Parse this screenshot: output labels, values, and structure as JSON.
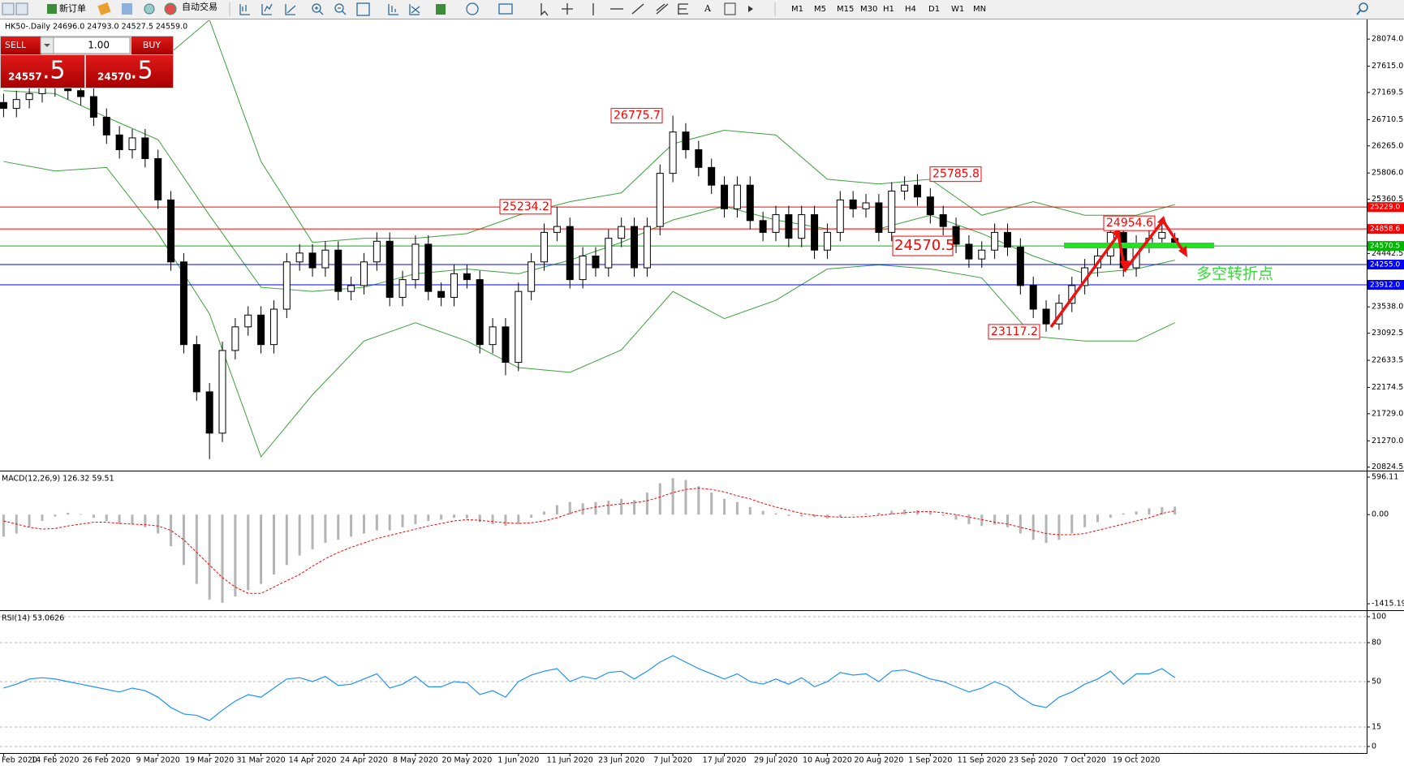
{
  "toolbar": {
    "new_order": "新订单",
    "auto_trading": "自动交易",
    "timeframes": [
      "M1",
      "M5",
      "M15",
      "M30",
      "H1",
      "H4",
      "D1",
      "W1",
      "MN"
    ]
  },
  "trade_panel": {
    "sell": "SELL",
    "lot": "1.00",
    "buy": "BUY",
    "sell_main": "24557",
    "sell_frac": ".5",
    "buy_main": "24570",
    "buy_frac": ".5"
  },
  "chart_data": [
    {
      "type": "candlestick",
      "header": "HK50-.Daily  24696.0 24793.0 24527.5 24559.0",
      "categories": [
        "Feb 2020",
        null,
        null,
        null,
        "14 Feb 2020",
        null,
        null,
        null,
        "26 Feb 2020",
        null,
        null,
        null,
        "9 Mar 2020",
        null,
        null,
        null,
        "19 Mar 2020",
        null,
        null,
        null,
        "31 Mar 2020",
        null,
        null,
        null,
        "14 Apr 2020",
        null,
        null,
        null,
        "24 Apr 2020",
        null,
        null,
        null,
        "8 May 2020",
        null,
        null,
        null,
        "20 May 2020",
        null,
        null,
        null,
        "1 Jun 2020",
        null,
        null,
        null,
        "11 Jun 2020",
        null,
        null,
        null,
        "23 Jun 2020",
        null,
        null,
        null,
        "7 Jul 2020",
        null,
        null,
        null,
        "17 Jul 2020",
        null,
        null,
        null,
        "29 Jul 2020",
        null,
        null,
        null,
        "10 Aug 2020",
        null,
        null,
        null,
        "20 Aug 2020",
        null,
        null,
        null,
        "1 Sep 2020",
        null,
        null,
        null,
        "11 Sep 2020",
        null,
        null,
        null,
        "23 Sep 2020",
        null,
        null,
        null,
        "7 Oct 2020",
        null,
        null,
        null,
        "19 Oct 2020",
        null,
        null,
        null
      ],
      "open": [
        27000,
        26900,
        27050,
        27150,
        27250,
        27300,
        27200,
        27100,
        26750,
        26450,
        26200,
        26400,
        26050,
        25350,
        24300,
        22900,
        22100,
        21400,
        22800,
        23200,
        23400,
        22900,
        23500,
        24300,
        24450,
        24200,
        24500,
        23800,
        23900,
        24300,
        24650,
        23700,
        24000,
        24600,
        23800,
        23700,
        24100,
        24000,
        22900,
        23200,
        22600,
        23800,
        24300,
        24800,
        24900,
        24000,
        24400,
        24200,
        24700,
        24900,
        24200,
        24900,
        25800,
        26500,
        26200,
        25900,
        25600,
        25200,
        25600,
        25000,
        24800,
        25100,
        24700,
        25100,
        24500,
        24800,
        25350,
        25200,
        25300,
        24800,
        25500,
        25600,
        25400,
        25100,
        24900,
        24600,
        24350,
        24500,
        24800,
        24550,
        23900,
        23500,
        23250,
        23600,
        23900,
        24200,
        24400,
        24800,
        24200,
        24600,
        24700,
        24696
      ],
      "high": [
        27150,
        27200,
        27300,
        27400,
        27450,
        27450,
        27350,
        27250,
        26900,
        26600,
        26550,
        26550,
        26200,
        25500,
        24450,
        23050,
        22250,
        22950,
        23350,
        23550,
        23550,
        23650,
        24450,
        24600,
        24600,
        24650,
        24650,
        24050,
        24450,
        24800,
        24800,
        24150,
        24750,
        24750,
        23950,
        24250,
        24250,
        24150,
        23350,
        23350,
        23950,
        24450,
        24950,
        25234.2,
        25050,
        24550,
        24550,
        24850,
        25050,
        25050,
        25050,
        25950,
        26775.7,
        26650,
        26350,
        26050,
        25750,
        25750,
        25750,
        25150,
        25250,
        25250,
        25250,
        25250,
        24950,
        25500,
        25500,
        25450,
        25450,
        25650,
        25750,
        25785.8,
        25550,
        25250,
        25050,
        24750,
        24650,
        24950,
        24950,
        24700,
        24050,
        23650,
        23750,
        24050,
        24350,
        24550,
        24954.6,
        24950,
        24750,
        24850,
        24950,
        24793
      ],
      "low": [
        26750,
        26750,
        26900,
        27000,
        27100,
        27050,
        26950,
        26600,
        26300,
        26050,
        26050,
        25900,
        25200,
        24150,
        22750,
        21950,
        20960,
        21250,
        22650,
        23050,
        22750,
        22750,
        23350,
        24150,
        24050,
        24050,
        23650,
        23650,
        23750,
        24150,
        23550,
        23550,
        23850,
        23650,
        23550,
        23550,
        23850,
        22750,
        22750,
        22380,
        22450,
        23650,
        24150,
        24650,
        23850,
        23850,
        24050,
        24050,
        24550,
        24050,
        24050,
        24750,
        25650,
        26050,
        25750,
        25450,
        25050,
        25050,
        24850,
        24650,
        24650,
        24550,
        24550,
        24350,
        24350,
        24650,
        25050,
        25050,
        24650,
        24650,
        25350,
        25250,
        24950,
        24750,
        24450,
        24200,
        24200,
        24350,
        24400,
        23750,
        23350,
        23117.2,
        23150,
        23450,
        23750,
        24050,
        24250,
        24050,
        24050,
        24450,
        24550,
        24527.5
      ],
      "close": [
        26900,
        27050,
        27150,
        27250,
        27300,
        27200,
        27100,
        26750,
        26450,
        26200,
        26400,
        26050,
        25350,
        24300,
        22900,
        22100,
        21400,
        22800,
        23200,
        23400,
        22900,
        23500,
        24300,
        24450,
        24200,
        24500,
        23800,
        23900,
        24300,
        24650,
        23700,
        24000,
        24600,
        23800,
        23700,
        24100,
        24000,
        22900,
        23200,
        22600,
        23800,
        24300,
        24800,
        24900,
        24000,
        24400,
        24200,
        24700,
        24900,
        24200,
        24900,
        25800,
        26500,
        26200,
        25900,
        25600,
        25200,
        25600,
        25000,
        24800,
        25100,
        24700,
        25100,
        24500,
        24800,
        25350,
        25200,
        25300,
        24800,
        25500,
        25600,
        25400,
        25100,
        24900,
        24600,
        24350,
        24500,
        24800,
        24550,
        23900,
        23500,
        23250,
        23600,
        23900,
        24200,
        24400,
        24800,
        24200,
        24600,
        24700,
        24800,
        24559
      ],
      "band_x": [
        0,
        4,
        8,
        12,
        16,
        20,
        24,
        28,
        32,
        36,
        40,
        44,
        48,
        52,
        56,
        60,
        64,
        68,
        72,
        76,
        80,
        84,
        88,
        91
      ],
      "band_color": "#3ca03c",
      "bands": [
        {
          "values": [
            27900,
            27950,
            27800,
            27660,
            28400,
            26000,
            24630,
            24700,
            24700,
            24780,
            25090,
            25320,
            25470,
            26300,
            26530,
            26450,
            25700,
            25620,
            25700,
            25090,
            25320,
            25090,
            25090,
            25270
          ]
        },
        {
          "values": [
            27200,
            27150,
            26750,
            26370,
            25090,
            23870,
            23800,
            23870,
            24100,
            24180,
            24100,
            24330,
            24630,
            25010,
            25240,
            25010,
            24860,
            24860,
            25090,
            24780,
            24400,
            24100,
            24180,
            24330
          ]
        },
        {
          "values": [
            26000,
            25840,
            25900,
            24780,
            23420,
            21000,
            22050,
            22960,
            23270,
            22960,
            22510,
            22430,
            22810,
            23800,
            23340,
            23650,
            24180,
            24250,
            24180,
            24030,
            23040,
            22960,
            22960,
            23270
          ]
        }
      ],
      "ylim": [
        20779,
        28392
      ],
      "yticks": [
        {
          "value": 28074,
          "label": "28074.0"
        },
        {
          "value": 27615,
          "label": "27615.0"
        },
        27169.5,
        26710.5,
        {
          "value": 26265,
          "label": "26265.0"
        },
        {
          "value": 25806,
          "label": "25806.0"
        },
        25360.5,
        24442.5,
        {
          "value": 23538,
          "label": "23538.0"
        },
        23092.5,
        22633.5,
        22174.5,
        {
          "value": 21729,
          "label": "21729.0"
        },
        {
          "value": 21270,
          "label": "21270.0"
        },
        20824.5
      ],
      "levels": [
        {
          "price": 25229,
          "label": "25229.0",
          "color": "#ff0000"
        },
        {
          "price": 24858.6,
          "color": "#ff0000"
        },
        {
          "price": 24570.5,
          "color": "#00b400"
        },
        {
          "price": 24255,
          "label": "24255.0",
          "color": "#0000ff"
        },
        {
          "price": 23912,
          "label": "23912.0",
          "color": "#0000ff"
        }
      ],
      "annotations": [
        26775.7,
        25234.2,
        25785.8,
        24954.6,
        23117.2
      ],
      "key_level": 24570.5,
      "note": "多空转折点"
    },
    {
      "type": "macd",
      "header": "MACD(12,26,9) 126.32 59.51",
      "histogram": [
        -350,
        -300,
        -200,
        -100,
        -30,
        30,
        10,
        -50,
        -100,
        -150,
        -150,
        -200,
        -300,
        -500,
        -800,
        -1100,
        -1350,
        -1400,
        -1300,
        -1200,
        -1100,
        -950,
        -800,
        -650,
        -550,
        -450,
        -400,
        -350,
        -300,
        -250,
        -250,
        -200,
        -150,
        -100,
        -80,
        -50,
        -60,
        -120,
        -150,
        -180,
        -150,
        -50,
        50,
        150,
        200,
        180,
        200,
        220,
        250,
        230,
        350,
        500,
        580,
        550,
        450,
        350,
        250,
        200,
        120,
        60,
        20,
        -20,
        -30,
        -40,
        -60,
        -40,
        -10,
        20,
        30,
        60,
        80,
        70,
        40,
        -20,
        -80,
        -150,
        -180,
        -160,
        -200,
        -300,
        -400,
        -450,
        -400,
        -300,
        -200,
        -120,
        -50,
        20,
        50,
        100,
        120,
        126.32
      ],
      "signal": [
        -100,
        -150,
        -200,
        -230,
        -220,
        -180,
        -150,
        -120,
        -120,
        -140,
        -150,
        -160,
        -180,
        -250,
        -400,
        -600,
        -800,
        -1000,
        -1150,
        -1250,
        -1250,
        -1150,
        -1050,
        -950,
        -820,
        -700,
        -600,
        -520,
        -450,
        -380,
        -330,
        -280,
        -230,
        -180,
        -140,
        -100,
        -80,
        -90,
        -110,
        -130,
        -140,
        -130,
        -100,
        -50,
        20,
        80,
        120,
        150,
        170,
        190,
        220,
        280,
        350,
        400,
        420,
        400,
        360,
        300,
        250,
        180,
        120,
        70,
        20,
        -10,
        -30,
        -40,
        -40,
        -30,
        -10,
        10,
        30,
        45,
        50,
        30,
        0,
        -40,
        -80,
        -120,
        -150,
        -200,
        -250,
        -300,
        -320,
        -320,
        -300,
        -250,
        -200,
        -150,
        -100,
        -50,
        20,
        59.51
      ],
      "histogram_color": "#b4b4b4",
      "signal_color": "#ff0000",
      "ylim": [
        -1505,
        673
      ],
      "yticks": [
        596.11,
        {
          "value": 0,
          "label": "0.00"
        },
        -1415.19
      ]
    },
    {
      "type": "line",
      "header": "RSI(14) 53.0626",
      "values": [
        45,
        48,
        52,
        53,
        52,
        50,
        48,
        46,
        44,
        42,
        45,
        43,
        38,
        30,
        25,
        24,
        20,
        28,
        35,
        40,
        38,
        45,
        52,
        53,
        50,
        54,
        47,
        48,
        52,
        56,
        45,
        48,
        54,
        46,
        46,
        50,
        49,
        40,
        43,
        38,
        50,
        55,
        58,
        60,
        50,
        54,
        52,
        57,
        58,
        52,
        58,
        65,
        70,
        65,
        60,
        56,
        52,
        56,
        50,
        48,
        52,
        48,
        53,
        46,
        50,
        57,
        55,
        56,
        50,
        58,
        59,
        56,
        52,
        50,
        46,
        42,
        45,
        50,
        46,
        38,
        32,
        30,
        38,
        42,
        48,
        52,
        58,
        48,
        56,
        56,
        60,
        53.0626
      ],
      "color": "#1e90ff",
      "ylim": [
        -4.4,
        103.75
      ],
      "yticks": [
        100,
        80,
        50,
        15,
        0
      ]
    }
  ]
}
